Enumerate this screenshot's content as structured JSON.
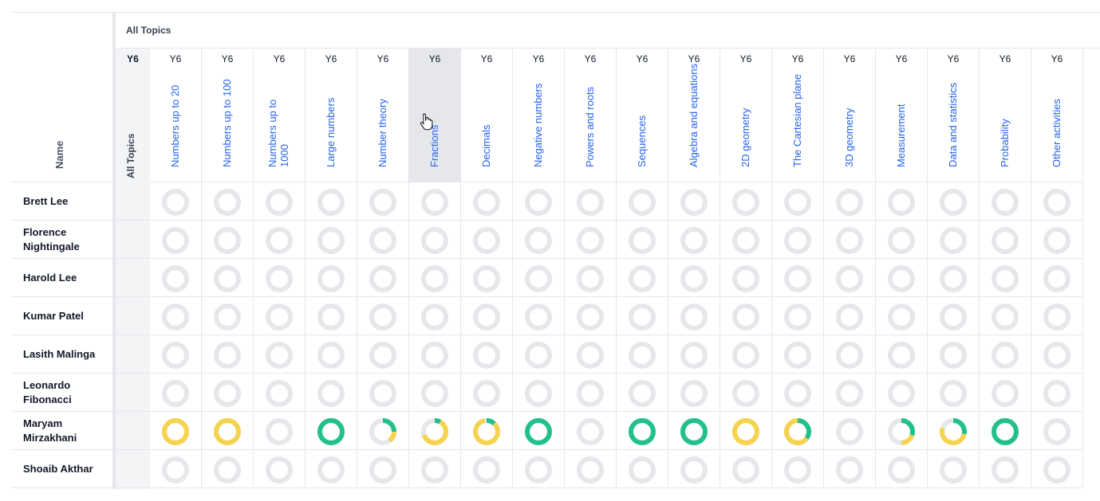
{
  "header": {
    "name_label": "Name",
    "all_topics_label": "All Topics",
    "all_topics_year": "Y6",
    "all_topics_column_label": "All Topics"
  },
  "colors": {
    "empty": "#e5e7eb",
    "green": "#22c08a",
    "yellow": "#f5d34f"
  },
  "topics": [
    {
      "year": "Y6",
      "label": "Numbers up to 20"
    },
    {
      "year": "Y6",
      "label": "Numbers up to 100"
    },
    {
      "year": "Y6",
      "label": "Numbers up to 1000"
    },
    {
      "year": "Y6",
      "label": "Large numbers"
    },
    {
      "year": "Y6",
      "label": "Number theory"
    },
    {
      "year": "Y6",
      "label": "Fractions"
    },
    {
      "year": "Y6",
      "label": "Decimals"
    },
    {
      "year": "Y6",
      "label": "Negative numbers"
    },
    {
      "year": "Y6",
      "label": "Powers and roots"
    },
    {
      "year": "Y6",
      "label": "Sequences"
    },
    {
      "year": "Y6",
      "label": "Algebra and equations"
    },
    {
      "year": "Y6",
      "label": "2D geometry"
    },
    {
      "year": "Y6",
      "label": "The Cartesian plane"
    },
    {
      "year": "Y6",
      "label": "3D geometry"
    },
    {
      "year": "Y6",
      "label": "Measurement"
    },
    {
      "year": "Y6",
      "label": "Data and statistics"
    },
    {
      "year": "Y6",
      "label": "Probability"
    },
    {
      "year": "Y6",
      "label": "Other activities"
    }
  ],
  "students": [
    {
      "name": "Brett Lee"
    },
    {
      "name": "Florence Nightingale"
    },
    {
      "name": "Harold Lee"
    },
    {
      "name": "Kumar Patel"
    },
    {
      "name": "Lasith Malinga"
    },
    {
      "name": "Leonardo Fibonacci"
    },
    {
      "name": "Maryam Mirzakhani",
      "progress": [
        {
          "green": 0,
          "yellow": 1
        },
        {
          "green": 0,
          "yellow": 1
        },
        {
          "green": 0,
          "yellow": 0
        },
        {
          "green": 1,
          "yellow": 0
        },
        {
          "green": 0.25,
          "yellow": 0.15
        },
        {
          "green": 0.08,
          "yellow": 0.62
        },
        {
          "green": 0.12,
          "yellow": 0.85
        },
        {
          "green": 1,
          "yellow": 0
        },
        {
          "green": 0,
          "yellow": 0
        },
        {
          "green": 1,
          "yellow": 0
        },
        {
          "green": 1,
          "yellow": 0
        },
        {
          "green": 0,
          "yellow": 1
        },
        {
          "green": 0.35,
          "yellow": 0.65
        },
        {
          "green": 0,
          "yellow": 0
        },
        {
          "green": 0.3,
          "yellow": 0.2
        },
        {
          "green": 0.28,
          "yellow": 0.52
        },
        {
          "green": 1,
          "yellow": 0
        },
        {
          "green": 0,
          "yellow": 0
        }
      ]
    },
    {
      "name": "Shoaib Akthar"
    }
  ]
}
